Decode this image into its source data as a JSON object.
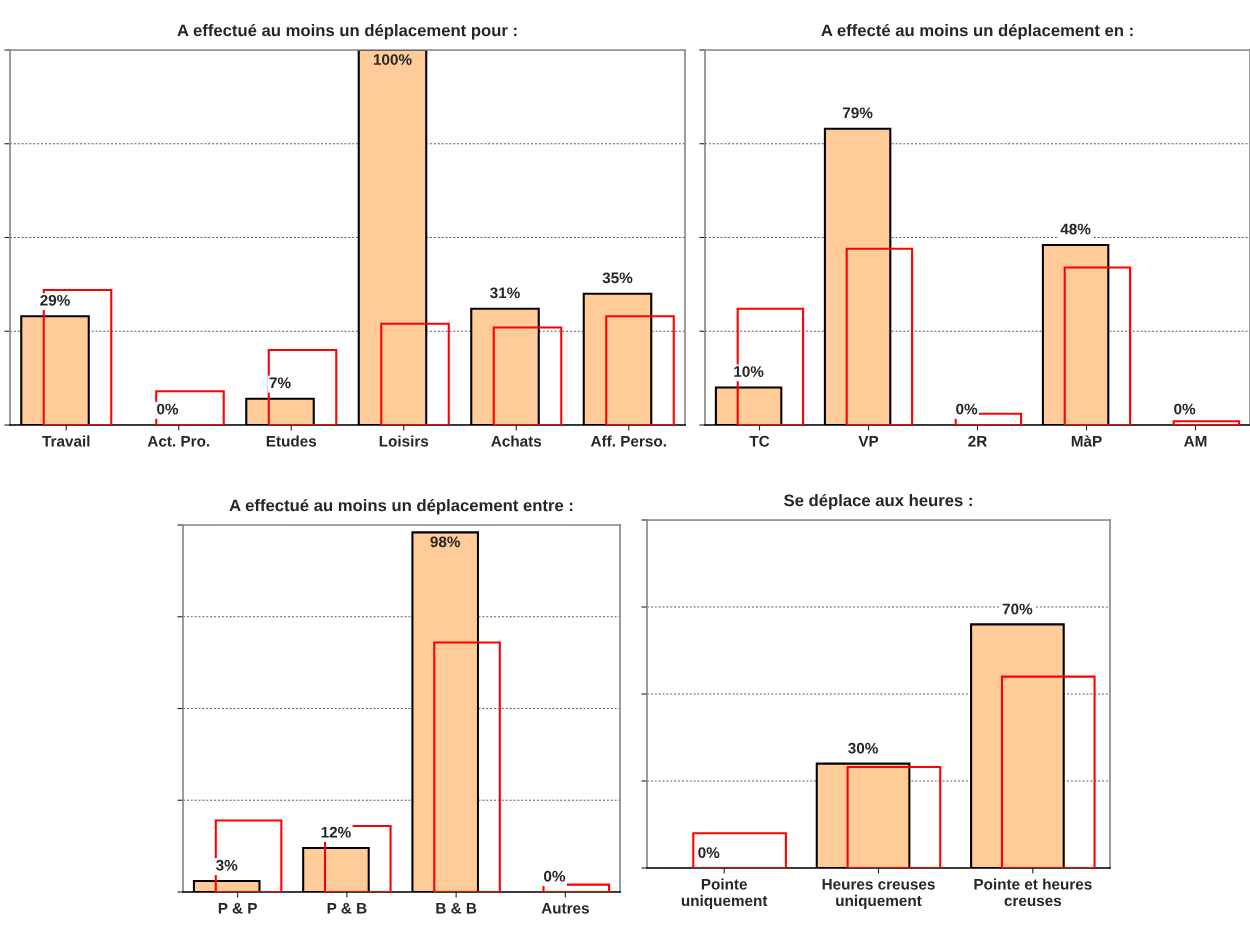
{
  "chart_data": [
    {
      "type": "bar",
      "title": "A effectué au moins un déplacement pour :",
      "categories": [
        "Travail",
        "Act. Pro.",
        "Etudes",
        "Loisirs",
        "Achats",
        "Aff. Perso."
      ],
      "series": [
        {
          "color": "#ffcc99",
          "values": [
            29,
            0,
            7,
            100,
            31,
            35
          ],
          "value_labels": [
            "29%",
            "0%",
            "7%",
            "100%",
            "31%",
            "35%"
          ]
        },
        {
          "color": "#ff0000",
          "values": [
            36,
            9,
            20,
            27,
            26,
            29
          ]
        }
      ],
      "ylim": [
        0,
        100
      ],
      "yticks": [
        {
          "value": 0,
          "label": null
        },
        {
          "value": 25,
          "label": null
        },
        {
          "value": 50,
          "label": null
        },
        {
          "value": 75,
          "label": null
        },
        {
          "value": 100,
          "label": null
        }
      ],
      "grid": "y",
      "legend": false
    },
    {
      "type": "bar",
      "title": "A effecté au moins un déplacement en :",
      "categories": [
        "TC",
        "VP",
        "2R",
        "MàP",
        "AM"
      ],
      "series": [
        {
          "color": "#ffcc99",
          "values": [
            10,
            79,
            0,
            48,
            0
          ],
          "value_labels": [
            "10%",
            "79%",
            "0%",
            "48%",
            "0%"
          ]
        },
        {
          "color": "#ff0000",
          "values": [
            31,
            47,
            3,
            42,
            1
          ]
        }
      ],
      "ylim": [
        0,
        100
      ],
      "yticks": [
        {
          "value": 0,
          "label": null
        },
        {
          "value": 25,
          "label": null
        },
        {
          "value": 50,
          "label": null
        },
        {
          "value": 75,
          "label": null
        },
        {
          "value": 100,
          "label": null
        }
      ],
      "grid": "y",
      "legend": false
    },
    {
      "type": "bar",
      "title": "A effectué au moins un déplacement entre :",
      "categories": [
        "P & P",
        "P & B",
        "B & B",
        "Autres"
      ],
      "series": [
        {
          "color": "#ffcc99",
          "values": [
            3,
            12,
            98,
            0
          ],
          "value_labels": [
            "3%",
            "12%",
            "98%",
            "0%"
          ]
        },
        {
          "color": "#ff0000",
          "values": [
            19.5,
            18,
            68,
            2
          ]
        }
      ],
      "ylim": [
        0,
        100
      ],
      "yticks": [
        {
          "value": 0,
          "label": null
        },
        {
          "value": 25,
          "label": null
        },
        {
          "value": 50,
          "label": null
        },
        {
          "value": 75,
          "label": null
        },
        {
          "value": 100,
          "label": null
        }
      ],
      "grid": "y",
      "legend": false
    },
    {
      "type": "bar",
      "title": "Se déplace aux heures :",
      "categories": [
        "Pointe\nuniquement",
        "Heures creuses\nuniquement",
        "Pointe et heures\ncreuses"
      ],
      "series": [
        {
          "color": "#ffcc99",
          "values": [
            0,
            30,
            70
          ],
          "value_labels": [
            "0%",
            "30%",
            "70%"
          ]
        },
        {
          "color": "#ff0000",
          "values": [
            10,
            29,
            55
          ]
        }
      ],
      "ylim": [
        0,
        100
      ],
      "yticks": [
        {
          "value": 0,
          "label": null
        },
        {
          "value": 25,
          "label": null
        },
        {
          "value": 50,
          "label": null
        },
        {
          "value": 75,
          "label": null
        },
        {
          "value": 100,
          "label": null
        }
      ],
      "grid": "y",
      "legend": false
    }
  ]
}
